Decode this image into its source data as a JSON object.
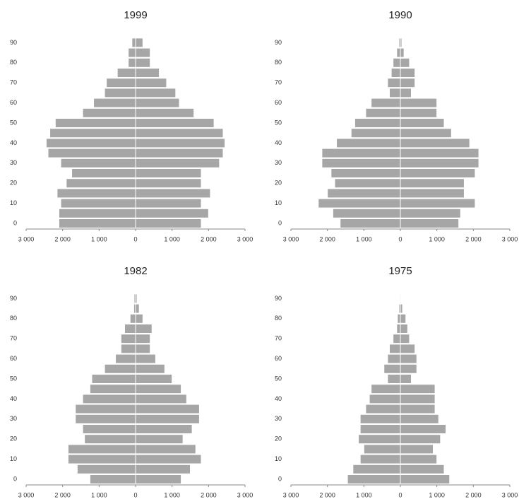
{
  "chart_data": [
    {
      "type": "pyramid",
      "title": "1999",
      "categories": [
        "0",
        null,
        "10",
        null,
        "20",
        null,
        "30",
        null,
        "40",
        null,
        "50",
        null,
        "60",
        null,
        "70",
        null,
        "80",
        null,
        "90"
      ],
      "series": [
        {
          "color": "#a6a6a6",
          "values": [
            -2100,
            -2100,
            -2050,
            -2150,
            -1900,
            -1750,
            -2050,
            -2400,
            -2450,
            -2350,
            -2200,
            -1450,
            -1150,
            -850,
            -800,
            -500,
            -200,
            -200,
            -100
          ]
        },
        {
          "color": "#a6a6a6",
          "values": [
            1800,
            2000,
            1800,
            2050,
            1800,
            1800,
            2300,
            2400,
            2450,
            2400,
            2150,
            1600,
            1200,
            1100,
            850,
            650,
            400,
            400,
            200
          ]
        }
      ],
      "xlim": [
        -3000,
        3000
      ],
      "xticks": [
        {
          "value": -3000,
          "label": "3 000"
        },
        {
          "value": -2000,
          "label": "2 000"
        },
        {
          "value": -1000,
          "label": "1 000"
        },
        0,
        {
          "value": 1000,
          "label": "1 000"
        },
        {
          "value": 2000,
          "label": "2 000"
        },
        {
          "value": 3000,
          "label": "3 000"
        }
      ]
    },
    {
      "type": "pyramid",
      "title": "1990",
      "categories": [
        "0",
        null,
        "10",
        null,
        "20",
        null,
        "30",
        null,
        "40",
        null,
        "50",
        null,
        "60",
        null,
        "70",
        null,
        "80",
        null,
        "90"
      ],
      "series": [
        {
          "color": "#a6a6a6",
          "values": [
            -1650,
            -1850,
            -2250,
            -2000,
            -1800,
            -1900,
            -2150,
            -2150,
            -1750,
            -1350,
            -1250,
            -950,
            -800,
            -300,
            -350,
            -250,
            -200,
            -100,
            -40
          ]
        },
        {
          "color": "#a6a6a6",
          "values": [
            1600,
            1650,
            2050,
            1750,
            1750,
            2050,
            2150,
            2150,
            1900,
            1400,
            1200,
            1000,
            1000,
            300,
            400,
            400,
            250,
            100,
            40
          ]
        }
      ],
      "xlim": [
        -3000,
        3000
      ],
      "xticks": [
        {
          "value": -3000,
          "label": "3 000"
        },
        {
          "value": -2000,
          "label": "2 000"
        },
        {
          "value": -1000,
          "label": "1 000"
        },
        0,
        {
          "value": 1000,
          "label": "1 000"
        },
        {
          "value": 2000,
          "label": "2 000"
        },
        {
          "value": 3000,
          "label": "3 000"
        }
      ]
    },
    {
      "type": "pyramid",
      "title": "1982",
      "categories": [
        "0",
        null,
        "10",
        null,
        "20",
        null,
        "30",
        null,
        "40",
        null,
        "50",
        null,
        "60",
        null,
        "70",
        null,
        "80",
        null,
        "90"
      ],
      "series": [
        {
          "color": "#a6a6a6",
          "values": [
            -1250,
            -1600,
            -1850,
            -1850,
            -1400,
            -1450,
            -1650,
            -1650,
            -1450,
            -1250,
            -1200,
            -850,
            -550,
            -400,
            -400,
            -300,
            -150,
            -50,
            -40
          ]
        },
        {
          "color": "#a6a6a6",
          "values": [
            1250,
            1500,
            1800,
            1650,
            1300,
            1550,
            1750,
            1750,
            1400,
            1250,
            1000,
            800,
            550,
            400,
            400,
            450,
            200,
            100,
            40
          ]
        }
      ],
      "xlim": [
        -3000,
        3000
      ],
      "xticks": [
        {
          "value": -3000,
          "label": "3 000"
        },
        {
          "value": -2000,
          "label": "2 000"
        },
        {
          "value": -1000,
          "label": "1 000"
        },
        0,
        {
          "value": 1000,
          "label": "1 000"
        },
        {
          "value": 2000,
          "label": "2 000"
        },
        {
          "value": 3000,
          "label": "3 000"
        }
      ]
    },
    {
      "type": "pyramid",
      "title": "1975",
      "categories": [
        "0",
        null,
        "10",
        null,
        "20",
        null,
        "30",
        null,
        "40",
        null,
        "50",
        null,
        "60",
        null,
        "70",
        null,
        "80",
        null,
        "90"
      ],
      "series": [
        {
          "color": "#a6a6a6",
          "values": [
            -1450,
            -1300,
            -1100,
            -1000,
            -1150,
            -1100,
            -1100,
            -950,
            -850,
            -800,
            -350,
            -450,
            -350,
            -300,
            -200,
            -100,
            -80,
            -40,
            -20
          ]
        },
        {
          "color": "#a6a6a6",
          "values": [
            1350,
            1200,
            1000,
            900,
            1100,
            1250,
            1050,
            950,
            950,
            950,
            300,
            450,
            450,
            400,
            250,
            200,
            150,
            60,
            20
          ]
        }
      ],
      "xlim": [
        -3000,
        3000
      ],
      "xticks": [
        {
          "value": -3000,
          "label": "3 000"
        },
        {
          "value": -2000,
          "label": "2 000"
        },
        {
          "value": -1000,
          "label": "1 000"
        },
        0,
        {
          "value": 1000,
          "label": "1 000"
        },
        {
          "value": 2000,
          "label": "2 000"
        },
        {
          "value": 3000,
          "label": "3 000"
        }
      ]
    }
  ]
}
